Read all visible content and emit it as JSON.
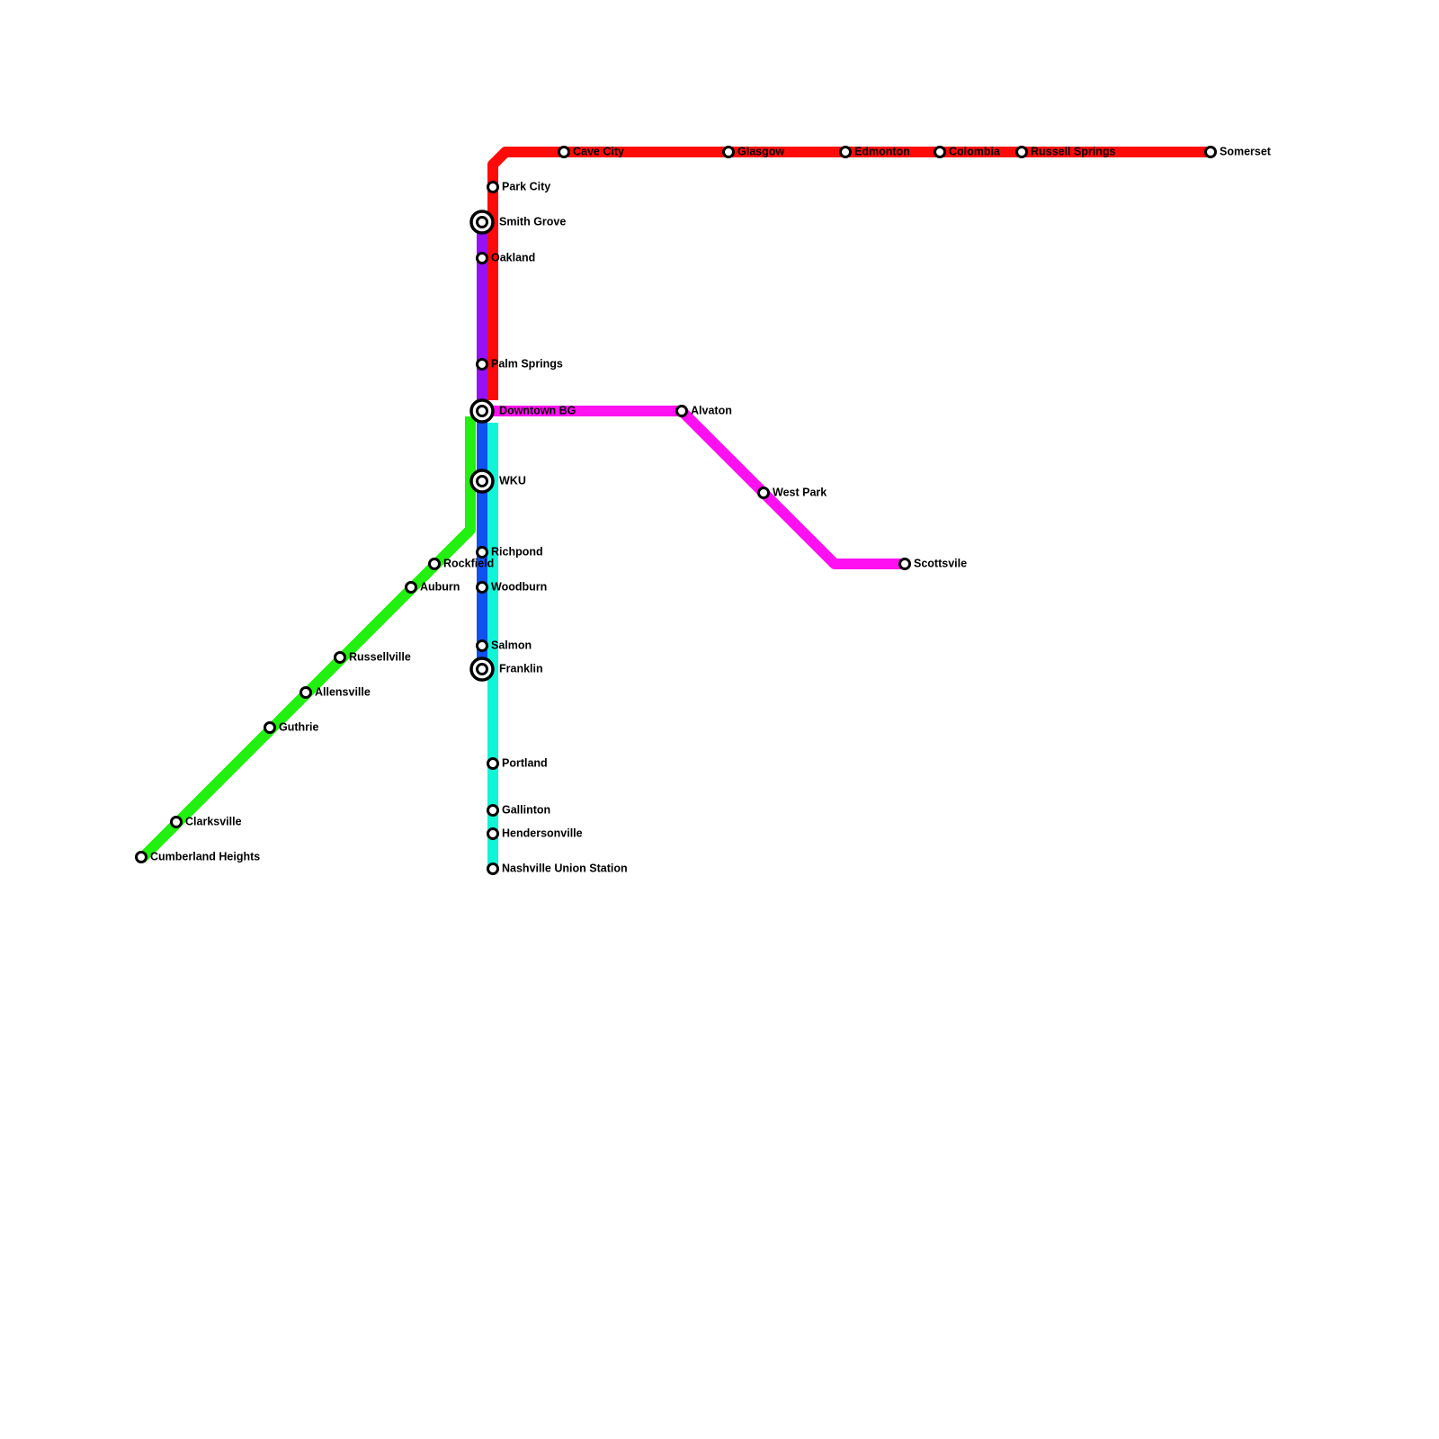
{
  "stations": [
    {
      "label": "Cave City"
    },
    {
      "label": "Glasgow"
    },
    {
      "label": "Edmonton"
    },
    {
      "label": "Colombia"
    },
    {
      "label": "Russell Springs"
    },
    {
      "label": "Somerset"
    },
    {
      "label": "Park City"
    },
    {
      "label": "Smith Grove"
    },
    {
      "label": "Oakland"
    },
    {
      "label": "Palm Springs"
    },
    {
      "label": "Downtown BG"
    },
    {
      "label": "Alvaton"
    },
    {
      "label": "West Park"
    },
    {
      "label": "Scottsvile"
    },
    {
      "label": "WKU"
    },
    {
      "label": "Richpond"
    },
    {
      "label": "Rockfield"
    },
    {
      "label": "Auburn"
    },
    {
      "label": "Woodburn"
    },
    {
      "label": "Salmon"
    },
    {
      "label": "Franklin"
    },
    {
      "label": "Russellville"
    },
    {
      "label": "Allensville"
    },
    {
      "label": "Guthrie"
    },
    {
      "label": "Clarksville"
    },
    {
      "label": "Cumberland Heights"
    },
    {
      "label": "Portland"
    },
    {
      "label": "Gallinton"
    },
    {
      "label": "Hendersonville"
    },
    {
      "label": "Nashville Union Station"
    }
  ]
}
